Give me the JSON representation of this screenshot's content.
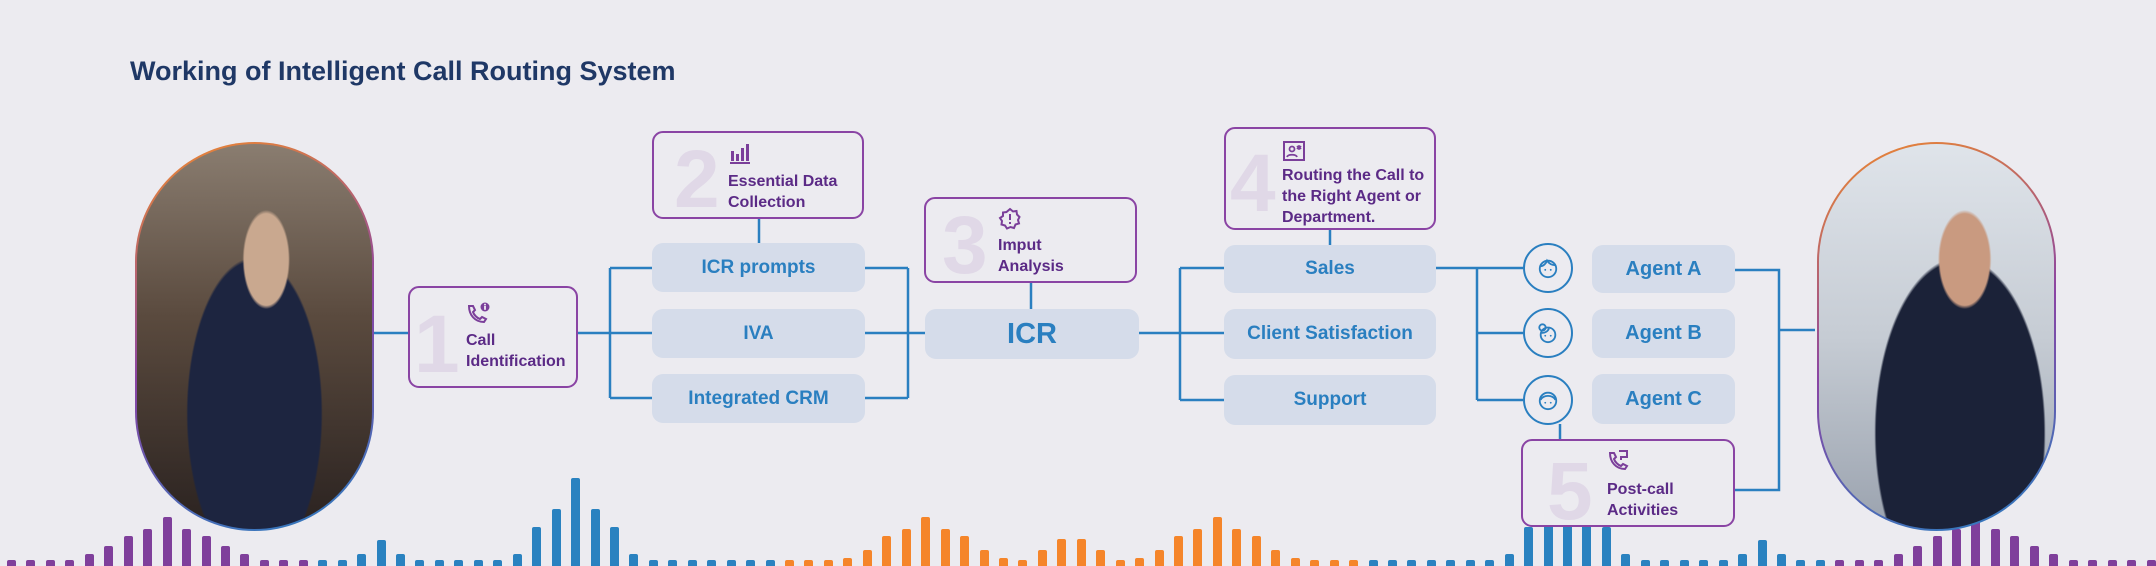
{
  "title": "Working of Intelligent Call Routing System",
  "colors": {
    "background": "#ecebf0",
    "purple": "#8a44a4",
    "blue": "#2a7fc0",
    "orange": "#f5852a",
    "node_fill": "#d5dcea",
    "title": "#1f3866"
  },
  "steps": [
    {
      "number": "1",
      "icon": "phone-info-icon",
      "label": "Call Identification"
    },
    {
      "number": "2",
      "icon": "bar-chart-icon",
      "label": "Essential Data Collection"
    },
    {
      "number": "3",
      "icon": "alert-badge-icon",
      "label": "Imput Analysis"
    },
    {
      "number": "4",
      "icon": "contact-card-icon",
      "label": "Routing the Call to the Right Agent or Department."
    },
    {
      "number": "5",
      "icon": "phone-forward-icon",
      "label": "Post-call Activities"
    }
  ],
  "collection_nodes": [
    "ICR prompts",
    "IVA",
    "Integrated CRM"
  ],
  "icr_node": "ICR",
  "departments": [
    "Sales",
    "Client Satisfaction",
    "Support"
  ],
  "agents": [
    {
      "label": "Agent A",
      "icon": "agent-face-icon"
    },
    {
      "label": "Agent B",
      "icon": "agent-face-bun-icon"
    },
    {
      "label": "Agent C",
      "icon": "agent-face-icon"
    }
  ],
  "photos": {
    "left": "caller-on-phone-photo",
    "right": "agent-smiling-photo"
  }
}
